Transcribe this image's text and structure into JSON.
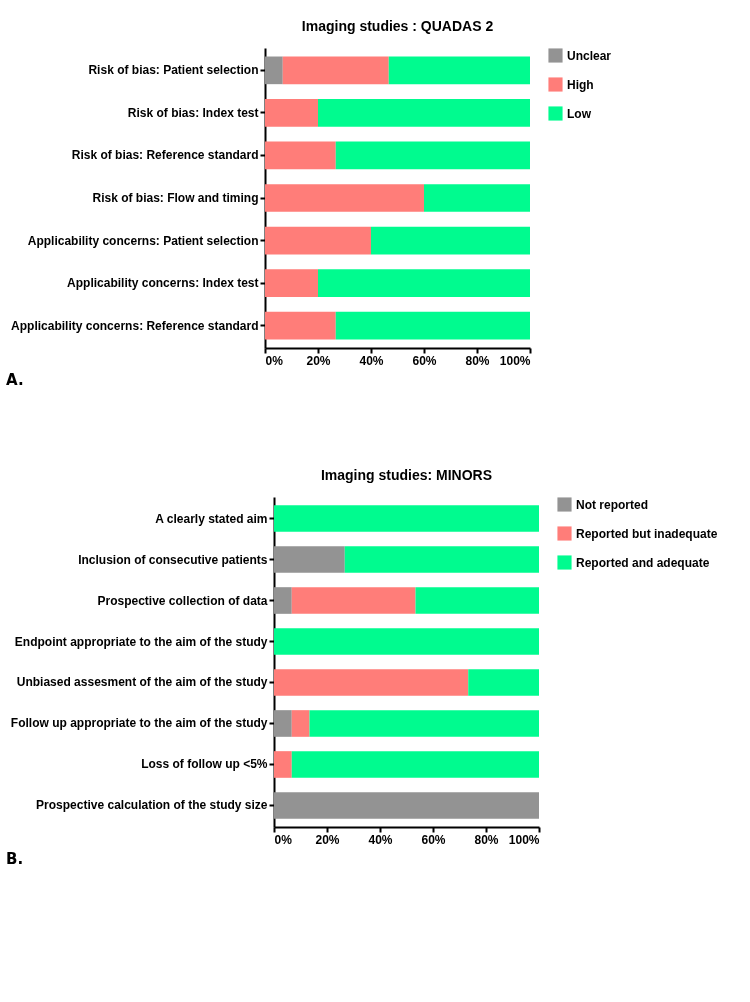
{
  "chart_data": [
    {
      "type": "bar",
      "orientation": "horizontal",
      "stacked": true,
      "title": "Imaging studies : QUADAS 2",
      "categories": [
        "Risk of bias: Patient selection",
        "Risk of bias: Index test",
        "Risk of bias: Reference standard",
        "Risk of bias: Flow and timing",
        "Applicability concerns: Patient selection",
        "Applicability concerns: Index test",
        "Applicability concerns: Reference standard"
      ],
      "series": [
        {
          "name": "Unclear",
          "color": "#939393",
          "values": [
            6.7,
            0,
            0,
            0,
            0,
            0,
            0
          ]
        },
        {
          "name": "High",
          "color": "#ff7d79",
          "values": [
            40,
            20,
            26.7,
            60,
            40,
            20,
            26.7
          ]
        },
        {
          "name": "Low",
          "color": "#00fb8f",
          "values": [
            53.3,
            80,
            73.3,
            40,
            60,
            80,
            73.3
          ]
        }
      ],
      "xlim": [
        0,
        100
      ],
      "xticks": [
        {
          "value": 0,
          "label": "0%"
        },
        {
          "value": 20,
          "label": "20%"
        },
        {
          "value": 40,
          "label": "40%"
        },
        {
          "value": 60,
          "label": "60%"
        },
        {
          "value": 80,
          "label": "80%"
        },
        {
          "value": 100,
          "label": "100%"
        }
      ],
      "grid": false,
      "legend": "top right",
      "annotations": [
        "A."
      ]
    },
    {
      "type": "bar",
      "orientation": "horizontal",
      "stacked": true,
      "title": "Imaging studies: MINORS",
      "categories": [
        "A clearly stated aim",
        "Inclusion of consecutive patients",
        "Prospective collection of data",
        "Endpoint appropriate to the aim of the study",
        "Unbiased assesment of the aim of the study",
        "Follow up appropriate to the aim of the study",
        "Loss of follow up <5%",
        "Prospective calculation of the study size"
      ],
      "series": [
        {
          "name": "Not reported",
          "color": "#939393",
          "values": [
            0,
            26.7,
            6.7,
            0,
            0,
            6.7,
            0,
            100
          ]
        },
        {
          "name": "Reported but inadequate",
          "color": "#ff7d79",
          "values": [
            0,
            0,
            46.7,
            0,
            73.3,
            6.7,
            6.7,
            0
          ]
        },
        {
          "name": "Reported and adequate",
          "color": "#00fb8f",
          "values": [
            100,
            73.3,
            46.6,
            100,
            26.7,
            86.6,
            93.3,
            0
          ]
        }
      ],
      "xlim": [
        0,
        100
      ],
      "xticks": [
        {
          "value": 0,
          "label": "0%"
        },
        {
          "value": 20,
          "label": "20%"
        },
        {
          "value": 40,
          "label": "40%"
        },
        {
          "value": 60,
          "label": "60%"
        },
        {
          "value": 80,
          "label": "80%"
        },
        {
          "value": 100,
          "label": "100%"
        }
      ],
      "grid": false,
      "legend": "right",
      "annotations": [
        "B."
      ]
    }
  ]
}
